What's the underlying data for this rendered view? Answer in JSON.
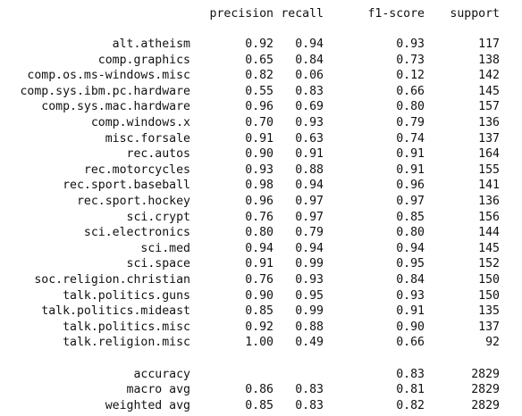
{
  "header": {
    "precision": "precision",
    "recall": "recall",
    "f1": "f1-score",
    "support": "support"
  },
  "classes": [
    {
      "label": "alt.atheism",
      "precision": "0.92",
      "recall": "0.94",
      "f1": "0.93",
      "support": "117"
    },
    {
      "label": "comp.graphics",
      "precision": "0.65",
      "recall": "0.84",
      "f1": "0.73",
      "support": "138"
    },
    {
      "label": "comp.os.ms-windows.misc",
      "precision": "0.82",
      "recall": "0.06",
      "f1": "0.12",
      "support": "142"
    },
    {
      "label": "comp.sys.ibm.pc.hardware",
      "precision": "0.55",
      "recall": "0.83",
      "f1": "0.66",
      "support": "145"
    },
    {
      "label": "comp.sys.mac.hardware",
      "precision": "0.96",
      "recall": "0.69",
      "f1": "0.80",
      "support": "157"
    },
    {
      "label": "comp.windows.x",
      "precision": "0.70",
      "recall": "0.93",
      "f1": "0.79",
      "support": "136"
    },
    {
      "label": "misc.forsale",
      "precision": "0.91",
      "recall": "0.63",
      "f1": "0.74",
      "support": "137"
    },
    {
      "label": "rec.autos",
      "precision": "0.90",
      "recall": "0.91",
      "f1": "0.91",
      "support": "164"
    },
    {
      "label": "rec.motorcycles",
      "precision": "0.93",
      "recall": "0.88",
      "f1": "0.91",
      "support": "155"
    },
    {
      "label": "rec.sport.baseball",
      "precision": "0.98",
      "recall": "0.94",
      "f1": "0.96",
      "support": "141"
    },
    {
      "label": "rec.sport.hockey",
      "precision": "0.96",
      "recall": "0.97",
      "f1": "0.97",
      "support": "136"
    },
    {
      "label": "sci.crypt",
      "precision": "0.76",
      "recall": "0.97",
      "f1": "0.85",
      "support": "156"
    },
    {
      "label": "sci.electronics",
      "precision": "0.80",
      "recall": "0.79",
      "f1": "0.80",
      "support": "144"
    },
    {
      "label": "sci.med",
      "precision": "0.94",
      "recall": "0.94",
      "f1": "0.94",
      "support": "145"
    },
    {
      "label": "sci.space",
      "precision": "0.91",
      "recall": "0.99",
      "f1": "0.95",
      "support": "152"
    },
    {
      "label": "soc.religion.christian",
      "precision": "0.76",
      "recall": "0.93",
      "f1": "0.84",
      "support": "150"
    },
    {
      "label": "talk.politics.guns",
      "precision": "0.90",
      "recall": "0.95",
      "f1": "0.93",
      "support": "150"
    },
    {
      "label": "talk.politics.mideast",
      "precision": "0.85",
      "recall": "0.99",
      "f1": "0.91",
      "support": "135"
    },
    {
      "label": "talk.politics.misc",
      "precision": "0.92",
      "recall": "0.88",
      "f1": "0.90",
      "support": "137"
    },
    {
      "label": "talk.religion.misc",
      "precision": "1.00",
      "recall": "0.49",
      "f1": "0.66",
      "support": "92"
    }
  ],
  "summary": [
    {
      "label": "accuracy",
      "precision": "",
      "recall": "",
      "f1": "0.83",
      "support": "2829"
    },
    {
      "label": "macro avg",
      "precision": "0.86",
      "recall": "0.83",
      "f1": "0.81",
      "support": "2829"
    },
    {
      "label": "weighted avg",
      "precision": "0.85",
      "recall": "0.83",
      "f1": "0.82",
      "support": "2829"
    }
  ]
}
